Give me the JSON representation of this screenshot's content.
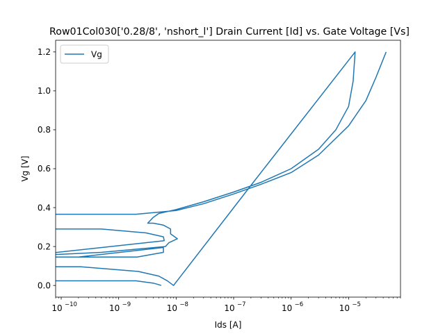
{
  "chart_data": {
    "type": "line",
    "title": "Row01Col030['0.28/8', 'nshort_l'] Drain Current [Id] vs. Gate Voltage [Vs]",
    "xlabel": "Ids [A]",
    "ylabel": "Vg [V]",
    "xscale": "log",
    "xlim": [
      8e-11,
      8e-05
    ],
    "ylim": [
      -0.06,
      1.26
    ],
    "x_ticks": [
      {
        "value": 1e-10,
        "base": "10",
        "exp": "−10"
      },
      {
        "value": 1e-09,
        "base": "10",
        "exp": "−9"
      },
      {
        "value": 1e-08,
        "base": "10",
        "exp": "−8"
      },
      {
        "value": 1e-07,
        "base": "10",
        "exp": "−7"
      },
      {
        "value": 1e-06,
        "base": "10",
        "exp": "−6"
      },
      {
        "value": 1e-05,
        "base": "10",
        "exp": "−5"
      }
    ],
    "y_ticks": [
      {
        "value": 0.0,
        "label": "0.0"
      },
      {
        "value": 0.2,
        "label": "0.2"
      },
      {
        "value": 0.4,
        "label": "0.4"
      },
      {
        "value": 0.6,
        "label": "0.6"
      },
      {
        "value": 0.8,
        "label": "0.8"
      },
      {
        "value": 1.0,
        "label": "1.0"
      },
      {
        "value": 1.2,
        "label": "1.2"
      }
    ],
    "grid": false,
    "legend_position": "top-left",
    "series": [
      {
        "name": "Vg",
        "color": "#1f77b4",
        "points": [
          [
            5.5e-09,
            0.0
          ],
          [
            5e-09,
            0.004
          ],
          [
            4e-09,
            0.012
          ],
          [
            2e-09,
            0.024
          ],
          [
            1e-11,
            0.024
          ],
          [
            1e-11,
            0.096
          ],
          [
            2.2e-10,
            0.096
          ],
          [
            2.2e-09,
            0.072
          ],
          [
            5e-09,
            0.048
          ],
          [
            7e-09,
            0.024
          ],
          [
            9e-09,
            0.0
          ],
          [
            2.2e-07,
            0.53
          ],
          [
            1.3e-05,
            1.2
          ],
          [
            1.2e-05,
            1.05
          ],
          [
            1e-05,
            0.92
          ],
          [
            6e-06,
            0.8
          ],
          [
            3e-06,
            0.7
          ],
          [
            1e-06,
            0.6
          ],
          [
            3e-07,
            0.53
          ],
          [
            1e-07,
            0.48
          ],
          [
            3e-08,
            0.43
          ],
          [
            1e-08,
            0.39
          ],
          [
            5e-09,
            0.37
          ],
          [
            4e-09,
            0.35
          ],
          [
            3.2e-09,
            0.32
          ],
          [
            4e-09,
            0.32
          ],
          [
            6e-09,
            0.31
          ],
          [
            8e-09,
            0.29
          ],
          [
            8e-09,
            0.265
          ],
          [
            1.05e-08,
            0.24
          ],
          [
            7.5e-09,
            0.22
          ],
          [
            6.5e-09,
            0.2
          ],
          [
            5e-10,
            0.17
          ],
          [
            1e-11,
            0.146
          ],
          [
            1e-11,
            0.146
          ],
          [
            2.1e-09,
            0.146
          ],
          [
            6e-09,
            0.17
          ],
          [
            6e-09,
            0.195
          ],
          [
            2e-10,
            0.146
          ],
          [
            1e-11,
            0.146
          ],
          [
            1e-11,
            0.29
          ],
          [
            5e-10,
            0.29
          ],
          [
            3e-09,
            0.27
          ],
          [
            6e-09,
            0.25
          ],
          [
            6.2e-09,
            0.23
          ],
          [
            1e-11,
            0.14
          ],
          [
            1e-11,
            0.366
          ],
          [
            2e-09,
            0.366
          ],
          [
            1e-08,
            0.385
          ],
          [
            3e-08,
            0.42
          ],
          [
            1e-07,
            0.47
          ],
          [
            3e-07,
            0.52
          ],
          [
            1e-06,
            0.58
          ],
          [
            3e-06,
            0.67
          ],
          [
            1e-05,
            0.82
          ],
          [
            2e-05,
            0.95
          ],
          [
            3e-05,
            1.07
          ],
          [
            4.5e-05,
            1.2
          ]
        ]
      }
    ]
  }
}
